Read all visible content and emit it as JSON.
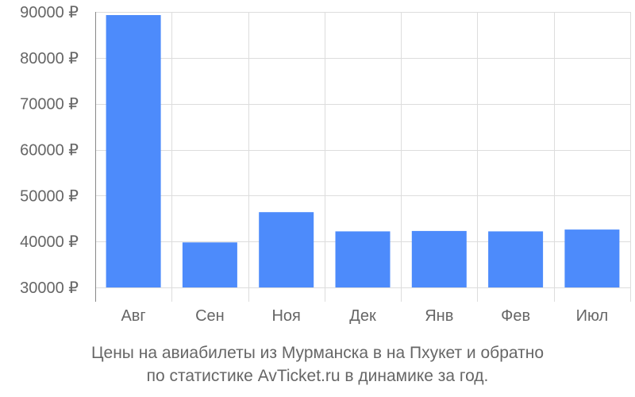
{
  "chart_data": {
    "type": "bar",
    "categories": [
      "Авг",
      "Сен",
      "Ноя",
      "Дек",
      "Янв",
      "Фев",
      "Июл"
    ],
    "values": [
      89300,
      39800,
      46400,
      42200,
      42300,
      42200,
      42600
    ],
    "ylim": [
      30000,
      90000
    ],
    "yticks": [
      30000,
      40000,
      50000,
      60000,
      70000,
      80000,
      90000
    ],
    "ytick_labels": [
      "30000 ₽",
      "40000 ₽",
      "50000 ₽",
      "60000 ₽",
      "70000 ₽",
      "80000 ₽",
      "90000 ₽"
    ],
    "bar_color": "#4d8bfb",
    "grid": true
  },
  "caption": {
    "line1": "Цены на авиабилеты из Мурманска в на Пхукет и обратно",
    "line2": "по статистике AvTicket.ru в динамике за год."
  }
}
